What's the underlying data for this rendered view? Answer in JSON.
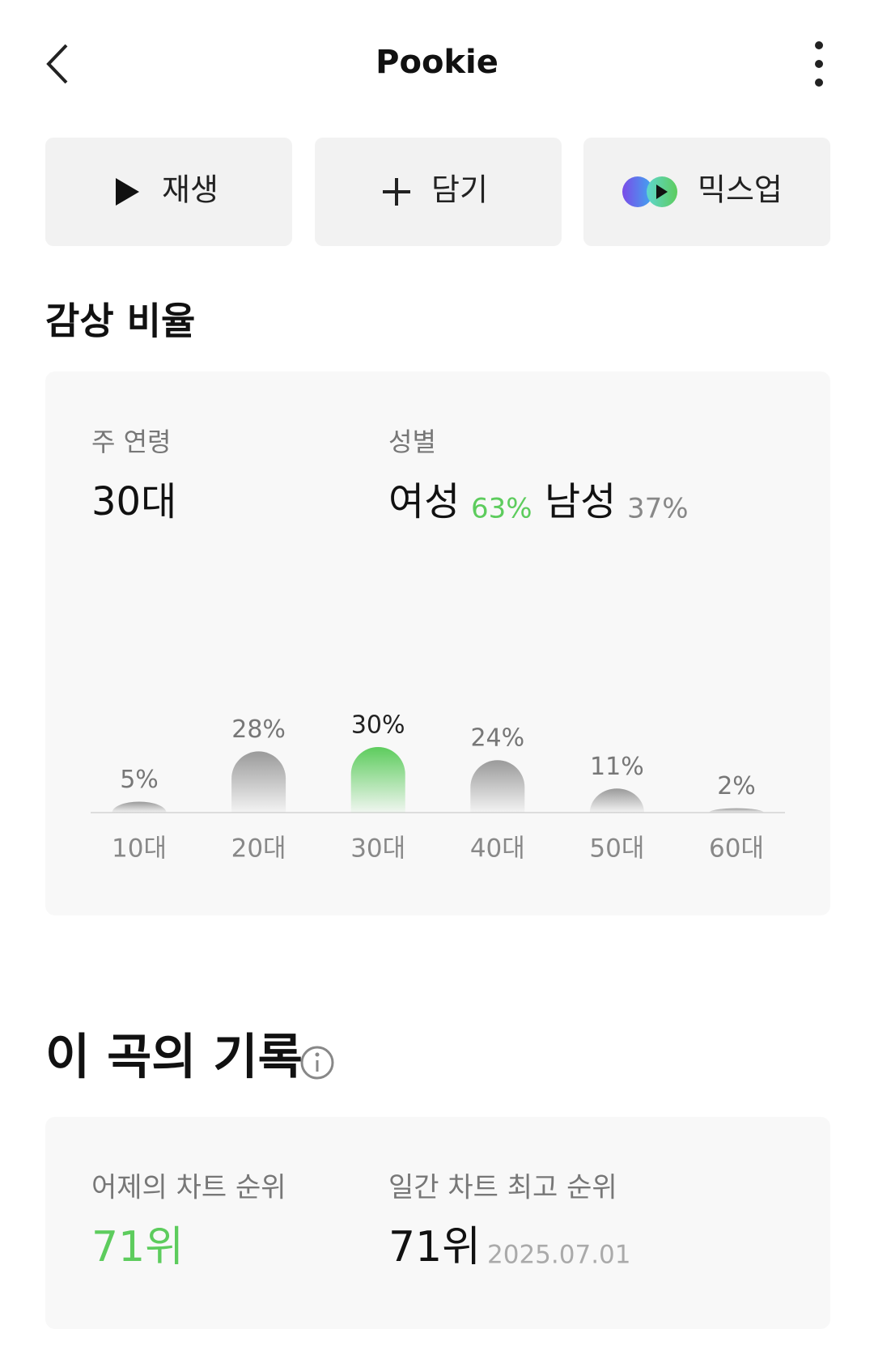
{
  "header": {
    "title": "Pookie"
  },
  "actions": [
    "재생",
    "담기",
    "믹스업"
  ],
  "listening": {
    "title": "감상 비율",
    "age_label": "주 연령",
    "age_value": "30대",
    "gender_label": "성별",
    "female": "여성",
    "female_share": "63%",
    "male": "남성",
    "male_share": "37%"
  },
  "chart_data": {
    "type": "bar",
    "categories": [
      "10대",
      "20대",
      "30대",
      "40대",
      "50대",
      "60대"
    ],
    "values": [
      5,
      28,
      30,
      24,
      11,
      2
    ],
    "value_labels": [
      "5%",
      "28%",
      "30%",
      "24%",
      "11%",
      "2%"
    ],
    "colors": [
      "#9a9a9a",
      "#9a9a9a",
      "#5dcc5d",
      "#9a9a9a",
      "#9a9a9a",
      "#9a9a9a"
    ]
  },
  "record": {
    "title": "이 곡의 기록",
    "yesterday_label": "어제의 차트 순위",
    "yesterday_rank": "71위",
    "best_label": "일간 차트 최고 순위",
    "best_rank": "71위",
    "best_date": "2025.07.01"
  }
}
